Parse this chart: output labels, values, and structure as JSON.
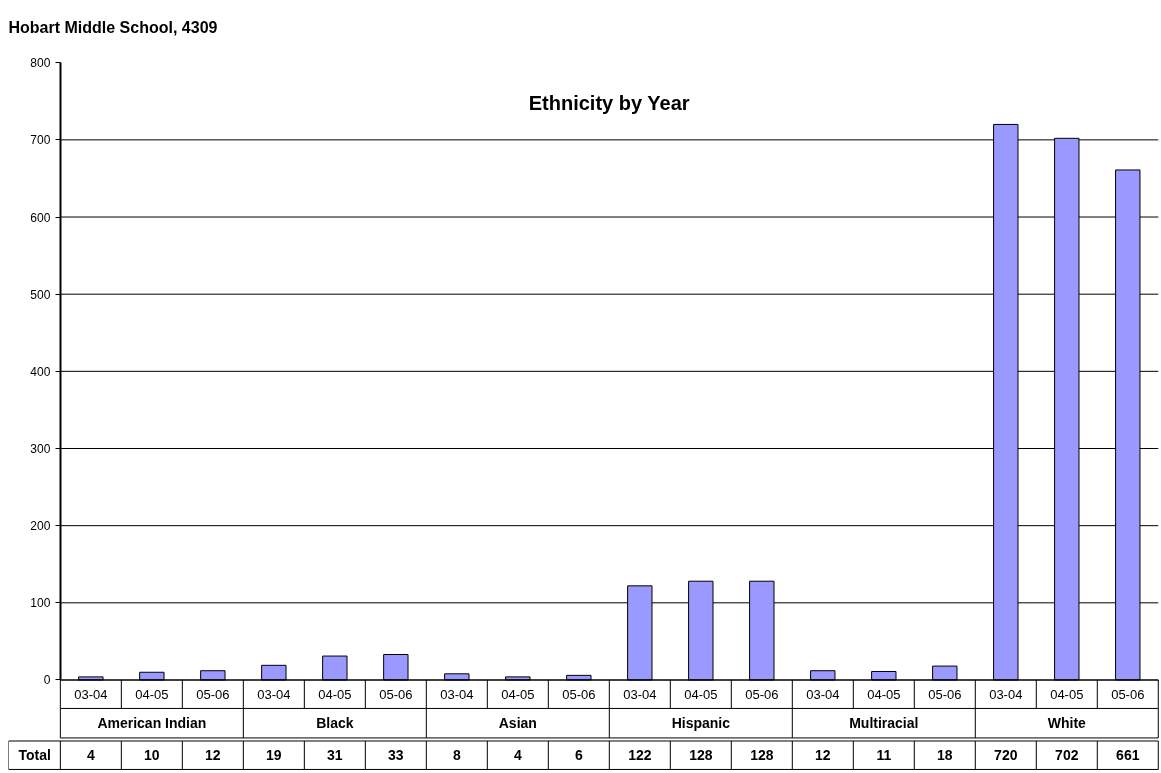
{
  "chart_data": {
    "type": "bar",
    "title": "Hobart Middle School, 4309",
    "subtitle": "Ethnicity by Year",
    "categories": [
      "03-04",
      "04-05",
      "05-06",
      "03-04",
      "04-05",
      "05-06",
      "03-04",
      "04-05",
      "05-06",
      "03-04",
      "04-05",
      "05-06",
      "03-04",
      "04-05",
      "05-06",
      "03-04",
      "04-05",
      "05-06"
    ],
    "series": [
      {
        "color": "#9999ff",
        "values": [
          4,
          10,
          12,
          19,
          31,
          33,
          8,
          4,
          6,
          122,
          128,
          128,
          12,
          11,
          18,
          720,
          702,
          661
        ]
      }
    ],
    "ylim": [
      0,
      800
    ],
    "yticks": [
      0,
      100,
      200,
      300,
      400,
      500,
      600,
      700,
      800
    ],
    "grid": "y",
    "data_labels": true,
    "annotations": [
      "American Indian",
      "Black",
      "Asian",
      "Hispanic",
      "Multiracial",
      "White",
      "Total"
    ]
  }
}
